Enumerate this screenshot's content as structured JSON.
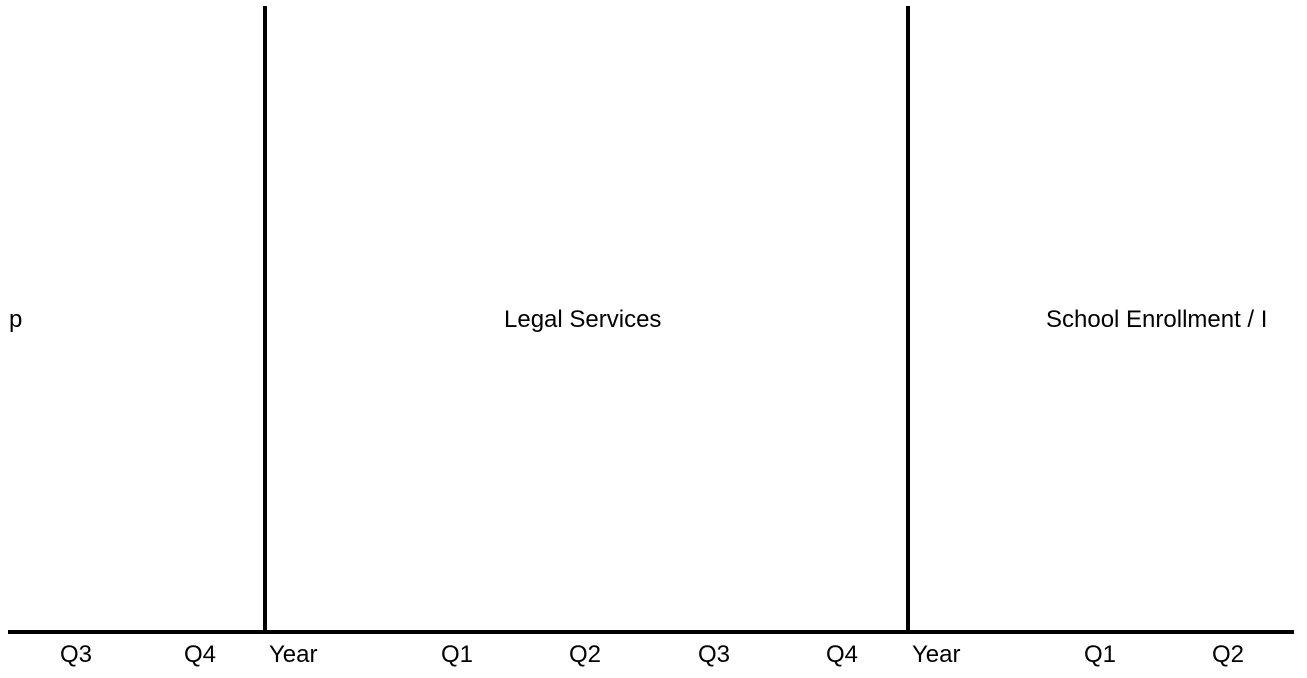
{
  "groups": [
    {
      "label": "p"
    },
    {
      "label": "Legal Services"
    },
    {
      "label": "School Enrollment / I"
    }
  ],
  "columns": [
    "Q3",
    "Q4",
    "Year",
    "Q1",
    "Q2",
    "Q3",
    "Q4",
    "Year",
    "Q1",
    "Q2"
  ]
}
